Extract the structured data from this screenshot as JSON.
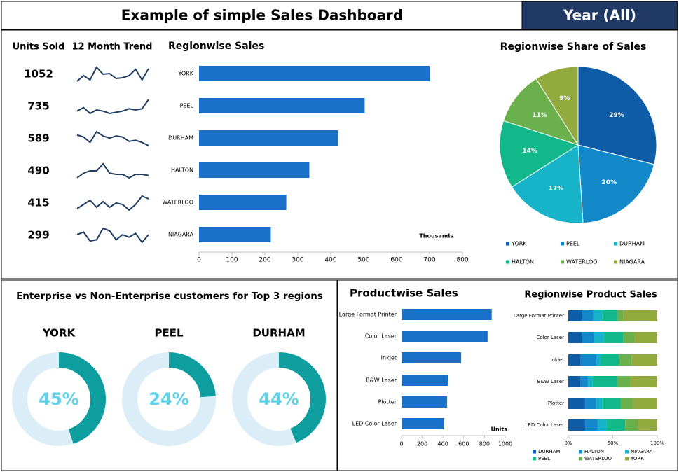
{
  "header": {
    "title": "Example of simple Sales Dashboard",
    "filter": "Year (All)"
  },
  "chart_data": [
    {
      "type": "sparkline",
      "column_titles": [
        "Units Sold",
        "12 Month Trend"
      ],
      "values": [
        1052,
        735,
        589,
        490,
        415,
        299
      ],
      "color": "#1f3d63",
      "trends": [
        [
          80,
          88,
          82,
          100,
          90,
          91,
          84,
          85,
          88,
          97,
          82,
          98
        ],
        [
          62,
          65,
          60,
          63,
          62,
          60,
          61,
          62,
          64,
          63,
          64,
          72
        ],
        [
          55,
          53,
          48,
          58,
          54,
          52,
          54,
          53,
          49,
          50,
          48,
          45
        ],
        [
          40,
          44,
          46,
          46,
          52,
          44,
          43,
          43,
          40,
          43,
          43,
          42
        ],
        [
          34,
          37,
          40,
          35,
          39,
          35,
          38,
          37,
          33,
          37,
          43,
          41
        ],
        [
          25,
          27,
          20,
          21,
          30,
          28,
          21,
          25,
          23,
          26,
          19,
          25
        ]
      ]
    },
    {
      "type": "hbar",
      "title": "Regionwise Sales",
      "x_label": "Thousands",
      "categories": [
        "YORK",
        "PEEL",
        "DURHAM",
        "HALTON",
        "WATERLOO",
        "NIAGARA"
      ],
      "values": [
        700,
        503,
        422,
        335,
        265,
        218
      ],
      "color": "#1a6fc9",
      "xlim": [
        0,
        800
      ],
      "xticks": [
        0,
        100,
        200,
        300,
        400,
        500,
        600,
        700,
        800
      ]
    },
    {
      "type": "pie",
      "title": "Regionwise Share of Sales",
      "categories": [
        "YORK",
        "PEEL",
        "DURHAM",
        "HALTON",
        "WATERLOO",
        "NIAGARA"
      ],
      "values": [
        29,
        20,
        17,
        14,
        11,
        9
      ],
      "value_labels": [
        "29%",
        "20%",
        "17%",
        "14%",
        "11%",
        "9%"
      ],
      "colors": [
        "#0e5ca8",
        "#1288c9",
        "#17b3c9",
        "#12b889",
        "#6ab04c",
        "#93aa3e"
      ]
    },
    {
      "type": "donut",
      "title": "Enterprise vs Non-Enterprise customers for Top 3 regions",
      "categories": [
        "YORK",
        "PEEL",
        "DURHAM"
      ],
      "values": [
        45,
        24,
        44
      ],
      "value_labels": [
        "45%",
        "24%",
        "44%"
      ],
      "color": "#0f9ea0",
      "track_color": "#dbeef8",
      "label_color": "#5fd0e8"
    },
    {
      "type": "hbar",
      "title": "Productwise Sales",
      "x_label": "Units",
      "categories": [
        "Large Format Printer",
        "Color Laser",
        "Inkjet",
        "B&W Laser",
        "Plotter",
        "LED Color Laser"
      ],
      "values": [
        870,
        830,
        575,
        450,
        440,
        410
      ],
      "color": "#1a6fc9",
      "xlim": [
        0,
        1000
      ],
      "xticks": [
        0,
        200,
        400,
        600,
        800,
        1000
      ]
    },
    {
      "type": "stacked_hbar",
      "title": "Regionwise Product  Sales",
      "categories": [
        "Large Format Printer",
        "Color Laser",
        "Inkjet",
        "B&W Laser",
        "Plotter",
        "LED Color Laser"
      ],
      "series": [
        {
          "name": "DURHAM",
          "color": "#0e5ca8",
          "values": [
            15,
            15,
            14,
            14,
            19,
            19
          ]
        },
        {
          "name": "HALTON",
          "color": "#1288c9",
          "values": [
            13,
            14,
            18,
            8,
            13,
            14
          ]
        },
        {
          "name": "NIAGARA",
          "color": "#17b3c9",
          "values": [
            10,
            11,
            5,
            5,
            6,
            10
          ]
        },
        {
          "name": "PEEL",
          "color": "#12b889",
          "values": [
            17,
            22,
            20,
            28,
            21,
            21
          ]
        },
        {
          "name": "WATERLOO",
          "color": "#6ab04c",
          "values": [
            7,
            12,
            14,
            15,
            14,
            14
          ]
        },
        {
          "name": "YORK",
          "color": "#93aa3e",
          "values": [
            38,
            26,
            29,
            30,
            27,
            22
          ]
        }
      ],
      "xlim": [
        0,
        100
      ],
      "xticks": [
        {
          "value": 0,
          "label": "0%"
        },
        {
          "value": 50,
          "label": "50%"
        },
        {
          "value": 100,
          "label": "100%"
        }
      ]
    }
  ]
}
